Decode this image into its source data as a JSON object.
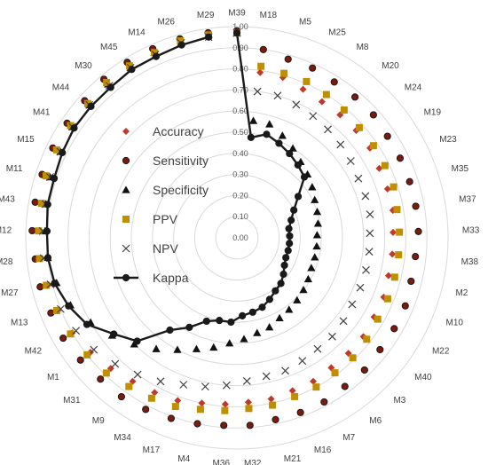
{
  "chart_data": {
    "type": "radar",
    "title": "",
    "rmin": 0,
    "rmax": 1,
    "tick_labels": [
      "0.00",
      "0.10",
      "0.20",
      "0.30",
      "0.40",
      "0.50",
      "0.60",
      "0.70",
      "0.80",
      "0.90",
      "1.00"
    ],
    "grid": true,
    "legend_position": "left",
    "categories": [
      "M39",
      "M18",
      "M5",
      "M25",
      "M8",
      "M20",
      "M24",
      "M19",
      "M23",
      "M35",
      "M37",
      "M33",
      "M38",
      "M2",
      "M10",
      "M22",
      "M40",
      "M3",
      "M6",
      "M7",
      "M16",
      "M21",
      "M32",
      "M36",
      "M4",
      "M17",
      "M34",
      "M9",
      "M31",
      "M1",
      "M42",
      "M13",
      "M27",
      "M28",
      "M12",
      "M43",
      "M11",
      "M15",
      "M41",
      "M44",
      "M30",
      "M45",
      "M14",
      "M26",
      "M29"
    ],
    "series": [
      {
        "name": "Accuracy",
        "color": "#c0392b",
        "marker": "diamond",
        "values": [
          0.97,
          0.79,
          0.79,
          0.77,
          0.76,
          0.76,
          0.76,
          0.76,
          0.75,
          0.75,
          0.75,
          0.74,
          0.74,
          0.74,
          0.75,
          0.75,
          0.76,
          0.76,
          0.76,
          0.77,
          0.77,
          0.78,
          0.78,
          0.79,
          0.8,
          0.82,
          0.83,
          0.84,
          0.86,
          0.88,
          0.9,
          0.91,
          0.92,
          0.93,
          0.93,
          0.93,
          0.94,
          0.94,
          0.94,
          0.94,
          0.95,
          0.95,
          0.96,
          0.96,
          0.97
        ]
      },
      {
        "name": "Sensitivity",
        "color": "#7b1a0e",
        "marker": "circle",
        "values": [
          0.98,
          0.9,
          0.88,
          0.88,
          0.87,
          0.87,
          0.87,
          0.86,
          0.86,
          0.86,
          0.86,
          0.86,
          0.85,
          0.85,
          0.86,
          0.86,
          0.86,
          0.87,
          0.87,
          0.88,
          0.88,
          0.88,
          0.89,
          0.89,
          0.9,
          0.91,
          0.92,
          0.93,
          0.93,
          0.94,
          0.95,
          0.95,
          0.96,
          0.96,
          0.97,
          0.97,
          0.97,
          0.97,
          0.97,
          0.97,
          0.98,
          0.98,
          0.98,
          0.98,
          0.98
        ]
      },
      {
        "name": "Specificity",
        "color": "#111111",
        "marker": "triangle",
        "values": [
          0.97,
          0.56,
          0.56,
          0.53,
          0.5,
          0.47,
          0.45,
          0.43,
          0.41,
          0.4,
          0.39,
          0.38,
          0.38,
          0.38,
          0.38,
          0.39,
          0.4,
          0.41,
          0.42,
          0.43,
          0.45,
          0.46,
          0.48,
          0.5,
          0.53,
          0.56,
          0.6,
          0.65,
          0.7,
          0.75,
          0.8,
          0.85,
          0.88,
          0.9,
          0.91,
          0.92,
          0.93,
          0.93,
          0.94,
          0.94,
          0.95,
          0.95,
          0.96,
          0.96,
          0.97
        ]
      },
      {
        "name": "PPV",
        "color": "#bf8f00",
        "marker": "square",
        "values": [
          0.97,
          0.82,
          0.81,
          0.81,
          0.8,
          0.79,
          0.78,
          0.78,
          0.78,
          0.78,
          0.77,
          0.77,
          0.77,
          0.77,
          0.77,
          0.77,
          0.78,
          0.79,
          0.79,
          0.8,
          0.8,
          0.81,
          0.81,
          0.82,
          0.83,
          0.85,
          0.86,
          0.87,
          0.89,
          0.9,
          0.91,
          0.92,
          0.93,
          0.94,
          0.94,
          0.94,
          0.95,
          0.95,
          0.95,
          0.95,
          0.96,
          0.96,
          0.96,
          0.97,
          0.97
        ]
      },
      {
        "name": "NPV",
        "color": "#404040",
        "marker": "x",
        "values": [
          0.97,
          0.7,
          0.7,
          0.69,
          0.68,
          0.67,
          0.66,
          0.65,
          0.64,
          0.64,
          0.64,
          0.63,
          0.63,
          0.63,
          0.63,
          0.63,
          0.64,
          0.65,
          0.65,
          0.66,
          0.67,
          0.67,
          0.68,
          0.7,
          0.72,
          0.74,
          0.77,
          0.8,
          0.83,
          0.86,
          0.88,
          0.9,
          0.91,
          0.92,
          0.92,
          0.92,
          0.93,
          0.93,
          0.94,
          0.94,
          0.94,
          0.95,
          0.95,
          0.96,
          0.96
        ]
      },
      {
        "name": "Kappa",
        "color": "#1a1a1a",
        "marker": "circle",
        "line": true,
        "values": [
          0.97,
          0.48,
          0.51,
          0.49,
          0.47,
          0.45,
          0.43,
          0.35,
          0.3,
          0.27,
          0.25,
          0.25,
          0.25,
          0.25,
          0.25,
          0.26,
          0.28,
          0.3,
          0.31,
          0.33,
          0.35,
          0.36,
          0.37,
          0.4,
          0.4,
          0.42,
          0.48,
          0.54,
          0.68,
          0.74,
          0.82,
          0.86,
          0.89,
          0.9,
          0.9,
          0.91,
          0.91,
          0.92,
          0.93,
          0.93,
          0.93,
          0.94,
          0.94,
          0.95,
          0.96
        ]
      }
    ]
  }
}
